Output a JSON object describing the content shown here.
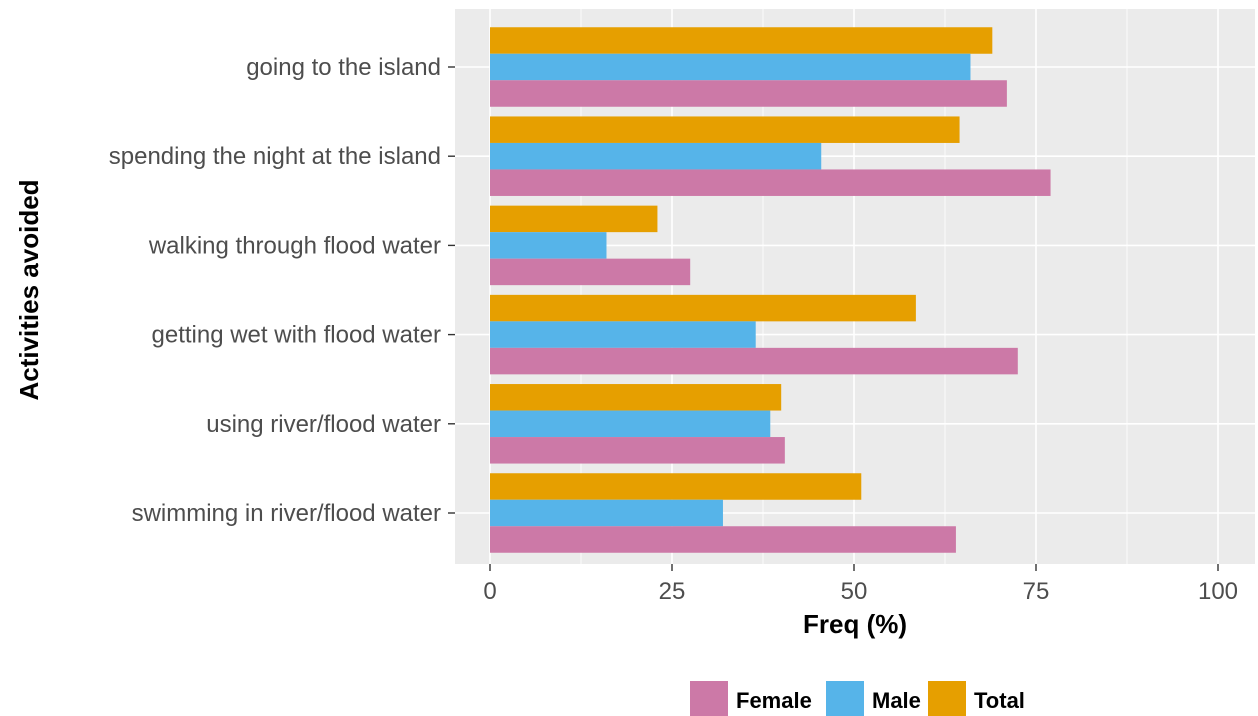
{
  "chart_data": {
    "type": "bar",
    "orientation": "horizontal",
    "categories": [
      "going to the island",
      "spending the night at the island",
      "walking through flood water",
      "getting wet with flood water",
      "using river/flood water",
      "swimming in river/flood water"
    ],
    "series": [
      {
        "name": "Total",
        "color": "#E69F00",
        "values": [
          69,
          64.5,
          23,
          58.5,
          40,
          51
        ]
      },
      {
        "name": "Male",
        "color": "#56B4E9",
        "values": [
          66,
          45.5,
          16,
          36.5,
          38.5,
          32
        ]
      },
      {
        "name": "Female",
        "color": "#CC79A7",
        "values": [
          71,
          77,
          27.5,
          72.5,
          40.5,
          64
        ]
      }
    ],
    "legend": {
      "position": "bottom",
      "entries": [
        {
          "name": "Female",
          "color": "#CC79A7"
        },
        {
          "name": "Male",
          "color": "#56B4E9"
        },
        {
          "name": "Total",
          "color": "#E69F00"
        }
      ]
    },
    "xlabel": "Freq (%)",
    "ylabel": "Activities avoided",
    "xlim": [
      0,
      100
    ],
    "xticks": [
      "0",
      "25",
      "50",
      "75",
      "100"
    ],
    "grid": true,
    "panel_background": "#EBEBEB",
    "grid_color": "#FFFFFF"
  }
}
